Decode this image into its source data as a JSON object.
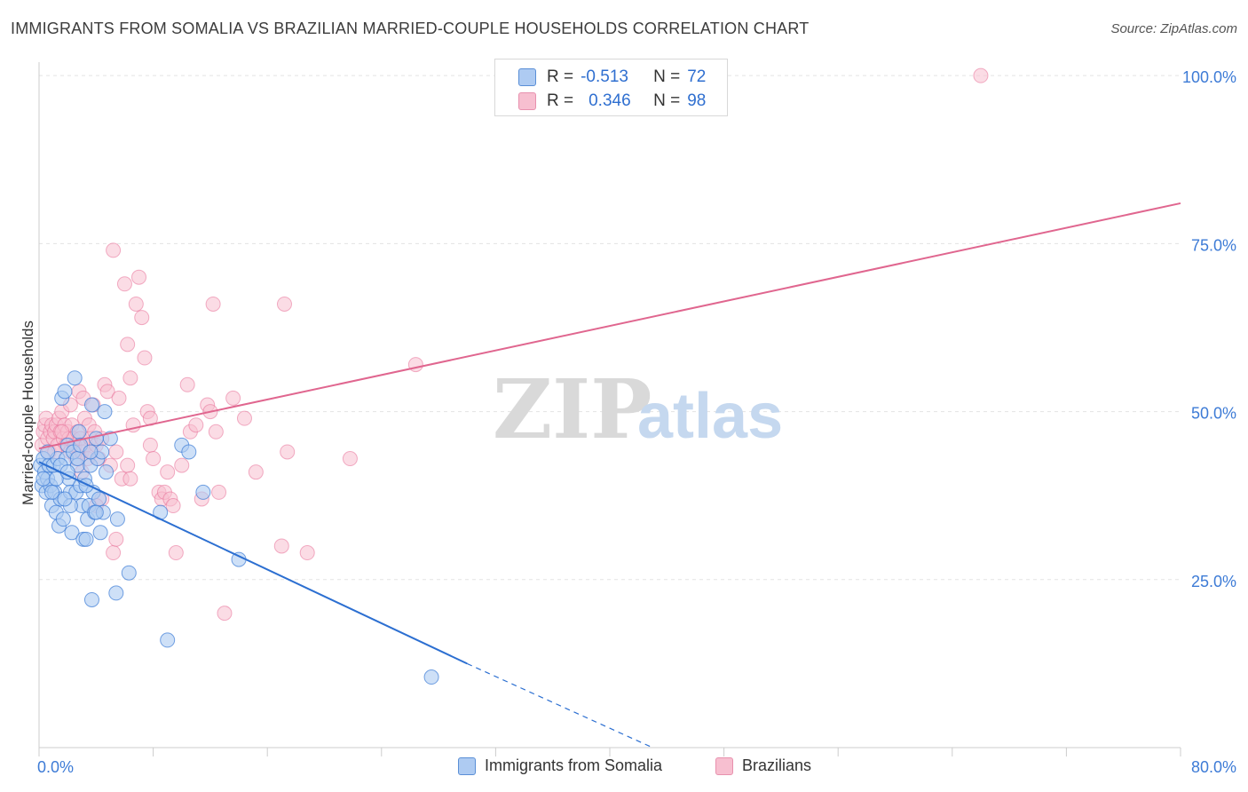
{
  "title": "IMMIGRANTS FROM SOMALIA VS BRAZILIAN MARRIED-COUPLE HOUSEHOLDS CORRELATION CHART",
  "source": "Source: ZipAtlas.com",
  "watermark": {
    "zip": "ZIP",
    "atlas": "atlas"
  },
  "legend": {
    "rows": [
      {
        "r_label": "R =",
        "r_value": "-0.513",
        "n_label": "N =",
        "n_value": "72"
      },
      {
        "r_label": "R =",
        "r_value": "0.346",
        "n_label": "N =",
        "n_value": "98"
      }
    ]
  },
  "colors": {
    "somalia_fill": "#aecbf2",
    "somalia_stroke": "#3a7bd5",
    "somalia_line": "#2c6fd1",
    "brazil_fill": "#f7bfd0",
    "brazil_stroke": "#e86f98",
    "brazil_line": "#e0668f",
    "tick_label": "#3d7bd6",
    "grid": "#e3e3e3"
  },
  "chart_data": {
    "type": "scatter",
    "title": "IMMIGRANTS FROM SOMALIA VS BRAZILIAN MARRIED-COUPLE HOUSEHOLDS CORRELATION CHART",
    "xlabel": "",
    "ylabel": "Married-couple Households",
    "xlim": [
      0,
      80
    ],
    "ylim": [
      0,
      102
    ],
    "x_tick_labels": [
      "0.0%",
      "80.0%"
    ],
    "y_tick_labels": [
      "25.0%",
      "50.0%",
      "75.0%",
      "100.0%"
    ],
    "y_ticks": [
      25,
      50,
      75,
      100
    ],
    "grid": true,
    "legend_position": "top-center",
    "series": [
      {
        "name": "Immigrants from Somalia",
        "r": -0.513,
        "n": 72,
        "trend": {
          "x0": 0,
          "y0": 42.5,
          "x1": 30,
          "y1": 12.5,
          "dashed_to_x": 43,
          "dashed_to_y": 0
        },
        "points": [
          [
            0.1,
            42
          ],
          [
            0.2,
            39
          ],
          [
            0.3,
            43
          ],
          [
            0.4,
            41
          ],
          [
            0.5,
            38
          ],
          [
            0.6,
            40
          ],
          [
            0.7,
            42
          ],
          [
            0.8,
            39
          ],
          [
            0.9,
            36
          ],
          [
            1.0,
            42
          ],
          [
            1.1,
            38
          ],
          [
            1.2,
            35
          ],
          [
            1.3,
            43
          ],
          [
            1.4,
            33
          ],
          [
            1.5,
            37
          ],
          [
            1.6,
            52
          ],
          [
            1.7,
            34
          ],
          [
            1.8,
            53
          ],
          [
            1.9,
            43
          ],
          [
            2.0,
            45
          ],
          [
            2.1,
            40
          ],
          [
            2.2,
            38
          ],
          [
            2.3,
            32
          ],
          [
            2.4,
            44
          ],
          [
            2.5,
            55
          ],
          [
            2.6,
            38
          ],
          [
            2.7,
            42
          ],
          [
            2.8,
            47
          ],
          [
            2.9,
            39
          ],
          [
            3.0,
            36
          ],
          [
            3.1,
            31
          ],
          [
            3.2,
            40
          ],
          [
            3.3,
            31
          ],
          [
            3.4,
            34
          ],
          [
            3.5,
            36
          ],
          [
            3.6,
            42
          ],
          [
            3.7,
            51
          ],
          [
            3.8,
            38
          ],
          [
            3.9,
            35
          ],
          [
            4.0,
            46
          ],
          [
            4.1,
            43
          ],
          [
            4.2,
            37
          ],
          [
            4.3,
            32
          ],
          [
            4.4,
            44
          ],
          [
            4.5,
            35
          ],
          [
            4.6,
            50
          ],
          [
            4.7,
            41
          ],
          [
            5.0,
            46
          ],
          [
            5.5,
            34
          ],
          [
            6.3,
            26
          ],
          [
            8.5,
            35
          ],
          [
            9.0,
            16
          ],
          [
            10.0,
            45
          ],
          [
            10.5,
            44
          ],
          [
            11.5,
            38
          ],
          [
            14.0,
            28
          ],
          [
            5.4,
            23
          ],
          [
            3.7,
            22
          ],
          [
            2.2,
            36
          ],
          [
            1.5,
            42
          ],
          [
            0.9,
            38
          ],
          [
            0.3,
            40
          ],
          [
            2.7,
            43
          ],
          [
            3.3,
            39
          ],
          [
            4.0,
            35
          ],
          [
            1.2,
            40
          ],
          [
            2.0,
            41
          ],
          [
            2.9,
            45
          ],
          [
            3.6,
            44
          ],
          [
            1.8,
            37
          ],
          [
            0.6,
            44
          ],
          [
            27.5,
            10.5
          ]
        ]
      },
      {
        "name": "Brazilians",
        "r": 0.346,
        "n": 98,
        "trend": {
          "x0": 0,
          "y0": 44.5,
          "x1": 80,
          "y1": 81
        },
        "points": [
          [
            0.2,
            45
          ],
          [
            0.3,
            47
          ],
          [
            0.4,
            48
          ],
          [
            0.5,
            49
          ],
          [
            0.6,
            46
          ],
          [
            0.7,
            44
          ],
          [
            0.8,
            47
          ],
          [
            0.9,
            48
          ],
          [
            1.0,
            46
          ],
          [
            1.1,
            47
          ],
          [
            1.2,
            48
          ],
          [
            1.3,
            45
          ],
          [
            1.4,
            49
          ],
          [
            1.5,
            47
          ],
          [
            1.6,
            50
          ],
          [
            1.7,
            46
          ],
          [
            1.8,
            48
          ],
          [
            1.9,
            45
          ],
          [
            2.0,
            47
          ],
          [
            2.1,
            46
          ],
          [
            2.2,
            44
          ],
          [
            2.3,
            48
          ],
          [
            2.4,
            46
          ],
          [
            2.5,
            45
          ],
          [
            2.6,
            43
          ],
          [
            2.7,
            47
          ],
          [
            2.8,
            53
          ],
          [
            2.9,
            46
          ],
          [
            3.0,
            44
          ],
          [
            3.1,
            52
          ],
          [
            3.2,
            49
          ],
          [
            3.3,
            45
          ],
          [
            3.4,
            43
          ],
          [
            3.5,
            48
          ],
          [
            3.6,
            46
          ],
          [
            3.7,
            44
          ],
          [
            3.8,
            51
          ],
          [
            3.9,
            47
          ],
          [
            4.0,
            45
          ],
          [
            4.2,
            43
          ],
          [
            4.4,
            46
          ],
          [
            4.6,
            54
          ],
          [
            4.8,
            53
          ],
          [
            5.0,
            42
          ],
          [
            5.2,
            74
          ],
          [
            5.4,
            44
          ],
          [
            5.6,
            52
          ],
          [
            5.8,
            40
          ],
          [
            6.0,
            69
          ],
          [
            6.2,
            60
          ],
          [
            6.4,
            55
          ],
          [
            6.6,
            48
          ],
          [
            6.8,
            66
          ],
          [
            7.0,
            70
          ],
          [
            7.2,
            64
          ],
          [
            7.4,
            58
          ],
          [
            7.6,
            50
          ],
          [
            7.8,
            45
          ],
          [
            8.0,
            43
          ],
          [
            8.4,
            38
          ],
          [
            8.6,
            37
          ],
          [
            8.8,
            38
          ],
          [
            9.0,
            41
          ],
          [
            9.2,
            37
          ],
          [
            9.4,
            36
          ],
          [
            9.6,
            29
          ],
          [
            10.0,
            42
          ],
          [
            10.4,
            54
          ],
          [
            10.6,
            47
          ],
          [
            11.0,
            48
          ],
          [
            11.4,
            37
          ],
          [
            11.8,
            51
          ],
          [
            12.0,
            50
          ],
          [
            12.2,
            66
          ],
          [
            12.4,
            47
          ],
          [
            12.6,
            38
          ],
          [
            13.0,
            20
          ],
          [
            13.6,
            52
          ],
          [
            14.4,
            49
          ],
          [
            15.2,
            41
          ],
          [
            17.0,
            30
          ],
          [
            17.2,
            66
          ],
          [
            17.4,
            44
          ],
          [
            18.8,
            29
          ],
          [
            21.8,
            43
          ],
          [
            26.4,
            57
          ],
          [
            4.4,
            37
          ],
          [
            5.2,
            29
          ],
          [
            5.4,
            31
          ],
          [
            6.2,
            42
          ],
          [
            7.8,
            49
          ],
          [
            3.0,
            41
          ],
          [
            2.2,
            51
          ],
          [
            1.1,
            44
          ],
          [
            1.6,
            47
          ],
          [
            4.0,
            36
          ],
          [
            6.4,
            40
          ],
          [
            66.0,
            100
          ]
        ]
      }
    ]
  },
  "bottom_legend": [
    {
      "label": "Immigrants from Somalia"
    },
    {
      "label": "Brazilians"
    }
  ]
}
